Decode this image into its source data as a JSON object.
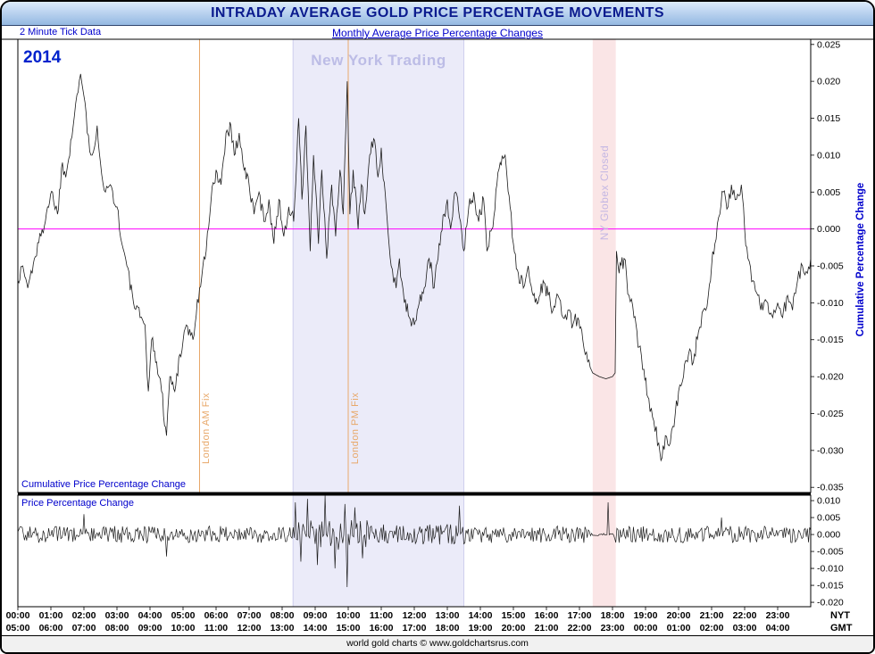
{
  "title": "INTRADAY AVERAGE GOLD PRICE PERCENTAGE MOVEMENTS",
  "subheader": {
    "left": "2 Minute Tick Data",
    "center": "Monthly Average Price Percentage Changes"
  },
  "annotations": {
    "year": "2014",
    "ny_trading": "New York Trading",
    "london_am_fix": "London AM Fix",
    "london_pm_fix": "London PM Fix",
    "ny_globex_closed": "NY Globex Closed",
    "cumulative_panel_label": "Cumulative Price Percentage Change",
    "price_panel_label": "Price Percentage Change",
    "right_axis_label": "Cumulative Percentage Change",
    "nyt_label": "NYT",
    "gmt_label": "GMT"
  },
  "footer": "world gold charts © www.goldchartsrus.com",
  "colors": {
    "accent_blue": "#0000cc",
    "title_text": "#0b1b8e",
    "titlebar_grad_top": "#dcebfb",
    "titlebar_grad_bottom": "#94b8e2",
    "series_line": "#1c1c1c",
    "zero_line": "#ff00ff",
    "fix_line": "#e8a86a",
    "fix_label": "#e8a86a",
    "ny_band_fill": "#ebebf9",
    "ny_band_edge": "#cfcfee",
    "ny_trading_label": "#bcbce6",
    "globex_band_fill": "#fae5e6",
    "globex_label": "#c4b7e3",
    "year_label": "#0022cc",
    "footer_bg": "#f1f1f1"
  },
  "chart_data": {
    "type": "line",
    "title": "INTRADAY AVERAGE GOLD PRICE PERCENTAGE MOVEMENTS",
    "subtitle": "Monthly Average Price Percentage Changes",
    "year": "2014",
    "x_axis": {
      "unit": "time of day",
      "hours_range": [
        0,
        24
      ],
      "nyt_tick_labels": [
        "00:00",
        "01:00",
        "02:00",
        "03:00",
        "04:00",
        "05:00",
        "06:00",
        "07:00",
        "08:00",
        "09:00",
        "10:00",
        "11:00",
        "12:00",
        "13:00",
        "14:00",
        "15:00",
        "16:00",
        "17:00",
        "18:00",
        "19:00",
        "20:00",
        "21:00",
        "22:00",
        "23:00"
      ],
      "gmt_tick_labels": [
        "05:00",
        "06:00",
        "07:00",
        "08:00",
        "09:00",
        "10:00",
        "11:00",
        "12:00",
        "13:00",
        "14:00",
        "15:00",
        "16:00",
        "17:00",
        "18:00",
        "19:00",
        "20:00",
        "21:00",
        "22:00",
        "23:00",
        "00:00",
        "01:00",
        "02:00",
        "03:00",
        "04:00"
      ],
      "tz_row_labels": [
        "NYT",
        "GMT"
      ]
    },
    "events": {
      "london_am_fix_hour": 5.5,
      "london_pm_fix_hour": 10.0,
      "ny_trading_hours": [
        8.33,
        13.5
      ],
      "ny_globex_closed_hours": [
        17.4,
        18.1
      ]
    },
    "panels": [
      {
        "name": "cumulative",
        "label": "Cumulative Price Percentage Change",
        "ylabel": "Cumulative Percentage Change",
        "ylim": [
          -0.0357,
          0.0257
        ],
        "yticks": [
          0.025,
          0.02,
          0.015,
          0.01,
          0.005,
          0.0,
          -0.005,
          -0.01,
          -0.015,
          -0.02,
          -0.025,
          -0.03,
          -0.035
        ],
        "zero_line": true,
        "points": [
          [
            0.0,
            -0.007
          ],
          [
            0.15,
            -0.005
          ],
          [
            0.3,
            -0.008
          ],
          [
            0.5,
            -0.004
          ],
          [
            0.7,
            -0.001
          ],
          [
            0.9,
            0.003
          ],
          [
            1.05,
            0.005
          ],
          [
            1.2,
            0.002
          ],
          [
            1.35,
            0.009
          ],
          [
            1.45,
            0.007
          ],
          [
            1.6,
            0.012
          ],
          [
            1.75,
            0.017
          ],
          [
            1.9,
            0.021
          ],
          [
            2.0,
            0.018
          ],
          [
            2.1,
            0.013
          ],
          [
            2.25,
            0.01
          ],
          [
            2.4,
            0.014
          ],
          [
            2.5,
            0.009
          ],
          [
            2.65,
            0.005
          ],
          [
            2.8,
            0.006
          ],
          [
            3.0,
            0.003
          ],
          [
            3.15,
            -0.002
          ],
          [
            3.3,
            -0.005
          ],
          [
            3.5,
            -0.01
          ],
          [
            3.7,
            -0.012
          ],
          [
            3.85,
            -0.013
          ],
          [
            3.95,
            -0.022
          ],
          [
            4.05,
            -0.015
          ],
          [
            4.2,
            -0.018
          ],
          [
            4.35,
            -0.022
          ],
          [
            4.5,
            -0.028
          ],
          [
            4.6,
            -0.02
          ],
          [
            4.75,
            -0.022
          ],
          [
            4.9,
            -0.017
          ],
          [
            5.1,
            -0.013
          ],
          [
            5.3,
            -0.015
          ],
          [
            5.5,
            -0.008
          ],
          [
            5.7,
            -0.003
          ],
          [
            5.85,
            0.004
          ],
          [
            6.0,
            0.008
          ],
          [
            6.15,
            0.006
          ],
          [
            6.3,
            0.013
          ],
          [
            6.45,
            0.014
          ],
          [
            6.55,
            0.01
          ],
          [
            6.7,
            0.013
          ],
          [
            6.85,
            0.008
          ],
          [
            7.0,
            0.006
          ],
          [
            7.15,
            0.002
          ],
          [
            7.3,
            0.005
          ],
          [
            7.45,
            0.001
          ],
          [
            7.6,
            0.004
          ],
          [
            7.75,
            -0.002
          ],
          [
            7.9,
            0.004
          ],
          [
            8.05,
            -0.001
          ],
          [
            8.2,
            0.003
          ],
          [
            8.35,
            0.001
          ],
          [
            8.5,
            0.015
          ],
          [
            8.6,
            0.004
          ],
          [
            8.72,
            0.014
          ],
          [
            8.85,
            -0.003
          ],
          [
            8.95,
            0.01
          ],
          [
            9.1,
            -0.002
          ],
          [
            9.2,
            0.008
          ],
          [
            9.35,
            -0.004
          ],
          [
            9.5,
            0.006
          ],
          [
            9.62,
            -0.001
          ],
          [
            9.75,
            0.008
          ],
          [
            9.85,
            0.002
          ],
          [
            9.97,
            0.02
          ],
          [
            10.05,
            0.002
          ],
          [
            10.15,
            0.008
          ],
          [
            10.3,
            0.0
          ],
          [
            10.4,
            0.006
          ],
          [
            10.5,
            0.002
          ],
          [
            10.65,
            0.01
          ],
          [
            10.8,
            0.012
          ],
          [
            10.9,
            0.007
          ],
          [
            11.0,
            0.011
          ],
          [
            11.15,
            0.003
          ],
          [
            11.3,
            -0.005
          ],
          [
            11.45,
            -0.008
          ],
          [
            11.55,
            -0.004
          ],
          [
            11.7,
            -0.01
          ],
          [
            11.85,
            -0.012
          ],
          [
            12.0,
            -0.013
          ],
          [
            12.15,
            -0.01
          ],
          [
            12.3,
            -0.008
          ],
          [
            12.45,
            -0.004
          ],
          [
            12.6,
            -0.008
          ],
          [
            12.75,
            -0.002
          ],
          [
            12.9,
            0.002
          ],
          [
            13.0,
            0.004
          ],
          [
            13.1,
            0.0
          ],
          [
            13.25,
            0.005
          ],
          [
            13.4,
            0.001
          ],
          [
            13.5,
            -0.003
          ],
          [
            13.65,
            0.003
          ],
          [
            13.8,
            0.005
          ],
          [
            13.95,
            0.001
          ],
          [
            14.1,
            0.004
          ],
          [
            14.2,
            -0.003
          ],
          [
            14.35,
            0.0
          ],
          [
            14.5,
            0.006
          ],
          [
            14.6,
            0.009
          ],
          [
            14.75,
            0.01
          ],
          [
            14.9,
            0.003
          ],
          [
            15.0,
            -0.002
          ],
          [
            15.15,
            -0.006
          ],
          [
            15.3,
            -0.008
          ],
          [
            15.45,
            -0.005
          ],
          [
            15.6,
            -0.009
          ],
          [
            15.75,
            -0.01
          ],
          [
            15.9,
            -0.007
          ],
          [
            16.05,
            -0.009
          ],
          [
            16.2,
            -0.011
          ],
          [
            16.35,
            -0.009
          ],
          [
            16.5,
            -0.012
          ],
          [
            16.65,
            -0.011
          ],
          [
            16.8,
            -0.013
          ],
          [
            16.95,
            -0.012
          ],
          [
            17.1,
            -0.015
          ],
          [
            17.25,
            -0.018
          ],
          [
            17.4,
            -0.0195
          ],
          [
            17.6,
            -0.02
          ],
          [
            17.8,
            -0.0203
          ],
          [
            18.0,
            -0.02
          ],
          [
            18.08,
            -0.0195
          ],
          [
            18.12,
            -0.003
          ],
          [
            18.2,
            -0.006
          ],
          [
            18.35,
            -0.004
          ],
          [
            18.5,
            -0.009
          ],
          [
            18.65,
            -0.012
          ],
          [
            18.8,
            -0.016
          ],
          [
            18.95,
            -0.019
          ],
          [
            19.1,
            -0.023
          ],
          [
            19.25,
            -0.026
          ],
          [
            19.4,
            -0.029
          ],
          [
            19.5,
            -0.031
          ],
          [
            19.6,
            -0.028
          ],
          [
            19.75,
            -0.029
          ],
          [
            19.9,
            -0.025
          ],
          [
            20.0,
            -0.022
          ],
          [
            20.15,
            -0.02
          ],
          [
            20.3,
            -0.017
          ],
          [
            20.45,
            -0.018
          ],
          [
            20.6,
            -0.014
          ],
          [
            20.75,
            -0.011
          ],
          [
            20.9,
            -0.009
          ],
          [
            21.0,
            -0.005
          ],
          [
            21.1,
            -0.002
          ],
          [
            21.25,
            0.002
          ],
          [
            21.35,
            0.005
          ],
          [
            21.5,
            0.003
          ],
          [
            21.6,
            0.006
          ],
          [
            21.75,
            0.004
          ],
          [
            21.9,
            0.006
          ],
          [
            22.0,
            0.0
          ],
          [
            22.1,
            -0.004
          ],
          [
            22.25,
            -0.007
          ],
          [
            22.4,
            -0.009
          ],
          [
            22.55,
            -0.011
          ],
          [
            22.7,
            -0.01
          ],
          [
            22.85,
            -0.012
          ],
          [
            23.0,
            -0.01
          ],
          [
            23.15,
            -0.012
          ],
          [
            23.3,
            -0.009
          ],
          [
            23.45,
            -0.011
          ],
          [
            23.6,
            -0.007
          ],
          [
            23.75,
            -0.005
          ],
          [
            23.9,
            -0.006
          ],
          [
            24.0,
            -0.004
          ]
        ],
        "noise": {
          "amplitude": 0.0011,
          "seed": 1337,
          "quiet_windows": [
            [
              17.3,
              18.08
            ]
          ]
        }
      },
      {
        "name": "price_change",
        "label": "Price Percentage Change",
        "ylim": [
          -0.0213,
          0.0116
        ],
        "yticks": [
          0.01,
          0.005,
          0.0,
          -0.005,
          -0.01,
          -0.015,
          -0.02
        ],
        "noise_series_spec": {
          "sample_minutes": 2,
          "seed": 2014,
          "base_amplitude": 0.0025,
          "amplitude_windows": [
            {
              "from": 8.3,
              "to": 10.6,
              "amplitude": 0.0045
            },
            {
              "from": 10.6,
              "to": 13.5,
              "amplitude": 0.003
            },
            {
              "from": 17.35,
              "to": 18.05,
              "amplitude": 0.0004
            }
          ],
          "spikes": [
            [
              2.0,
              0.006
            ],
            [
              4.5,
              -0.0065
            ],
            [
              8.4,
              0.0095
            ],
            [
              8.55,
              -0.008
            ],
            [
              8.75,
              0.0105
            ],
            [
              9.05,
              -0.009
            ],
            [
              9.3,
              0.0115
            ],
            [
              9.6,
              -0.01
            ],
            [
              9.9,
              0.009
            ],
            [
              9.97,
              -0.0155
            ],
            [
              10.2,
              0.008
            ],
            [
              10.45,
              -0.007
            ],
            [
              13.35,
              0.0085
            ],
            [
              17.85,
              0.0095
            ],
            [
              21.3,
              0.005
            ]
          ]
        }
      }
    ]
  }
}
